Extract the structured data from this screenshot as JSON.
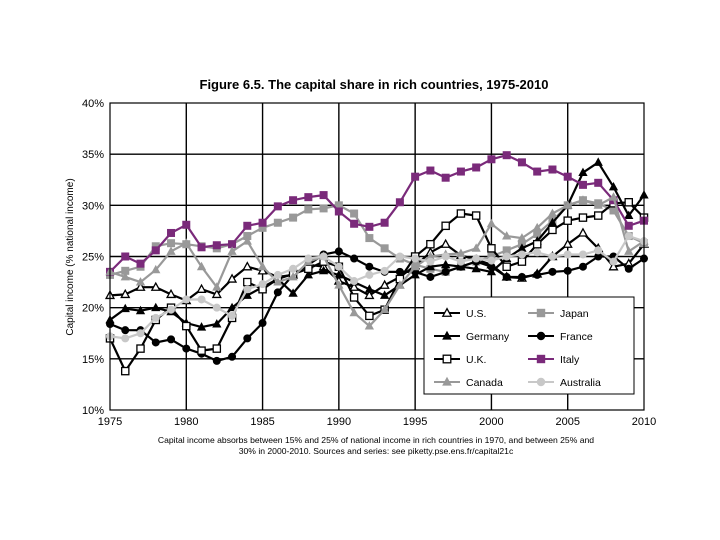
{
  "chart_data": {
    "type": "line",
    "title": "Figure 6.5. The capital share in rich countries, 1975-2010",
    "xlabel": "",
    "ylabel": "Capital income (% national income)",
    "xlim": [
      1975,
      2010
    ],
    "ylim": [
      0.1,
      0.4
    ],
    "x_ticks": [
      "1975",
      "1980",
      "1985",
      "1990",
      "1995",
      "2000",
      "2005",
      "2010"
    ],
    "y_ticks": [
      "10%",
      "15%",
      "20%",
      "25%",
      "30%",
      "35%",
      "40%"
    ],
    "caption_line1": "Capital income absorbs between 15% and 25% of national income in rich countries in 1970, and between 25% and",
    "caption_line2": "30% in 2000-2010. Sources and series: see piketty.pse.ens.fr/capital21c",
    "legend_position": "lower-right",
    "x": [
      1975,
      1976,
      1977,
      1978,
      1979,
      1980,
      1981,
      1982,
      1983,
      1984,
      1985,
      1986,
      1987,
      1988,
      1989,
      1990,
      1991,
      1992,
      1993,
      1994,
      1995,
      1996,
      1997,
      1998,
      1999,
      2000,
      2001,
      2002,
      2003,
      2004,
      2005,
      2006,
      2007,
      2008,
      2009,
      2010
    ],
    "series": [
      {
        "name": "U.S.",
        "color": "#000000",
        "marker": "triangle-open",
        "values": [
          0.212,
          0.213,
          0.22,
          0.22,
          0.213,
          0.207,
          0.218,
          0.213,
          0.228,
          0.24,
          0.236,
          0.23,
          0.232,
          0.242,
          0.24,
          0.226,
          0.22,
          0.212,
          0.222,
          0.23,
          0.241,
          0.254,
          0.262,
          0.251,
          0.247,
          0.242,
          0.23,
          0.229,
          0.233,
          0.25,
          0.262,
          0.273,
          0.258,
          0.24,
          0.243,
          0.262
        ]
      },
      {
        "name": "Japan",
        "color": "#999999",
        "marker": "square",
        "values": [
          0.232,
          0.236,
          0.24,
          0.26,
          0.263,
          0.262,
          0.26,
          0.258,
          0.262,
          0.27,
          0.278,
          0.283,
          0.288,
          0.296,
          0.297,
          0.3,
          0.292,
          0.268,
          0.258,
          0.248,
          0.242,
          0.238,
          0.235,
          0.24,
          0.245,
          0.25,
          0.256,
          0.262,
          0.272,
          0.285,
          0.3,
          0.305,
          0.302,
          0.295,
          0.27,
          0.263
        ]
      },
      {
        "name": "Germany",
        "color": "#000000",
        "marker": "triangle",
        "values": [
          0.188,
          0.199,
          0.197,
          0.2,
          0.196,
          0.185,
          0.181,
          0.184,
          0.2,
          0.212,
          0.22,
          0.228,
          0.214,
          0.232,
          0.236,
          0.232,
          0.225,
          0.218,
          0.212,
          0.222,
          0.232,
          0.24,
          0.242,
          0.24,
          0.238,
          0.235,
          0.248,
          0.258,
          0.265,
          0.283,
          0.3,
          0.332,
          0.342,
          0.318,
          0.29,
          0.31
        ]
      },
      {
        "name": "France",
        "color": "#000000",
        "marker": "circle",
        "values": [
          0.184,
          0.178,
          0.178,
          0.166,
          0.169,
          0.16,
          0.155,
          0.148,
          0.152,
          0.17,
          0.185,
          0.215,
          0.232,
          0.242,
          0.252,
          0.255,
          0.248,
          0.24,
          0.235,
          0.235,
          0.235,
          0.23,
          0.235,
          0.24,
          0.245,
          0.24,
          0.23,
          0.23,
          0.232,
          0.235,
          0.236,
          0.24,
          0.25,
          0.25,
          0.238,
          0.248
        ]
      },
      {
        "name": "U.K.",
        "color": "#000000",
        "marker": "square-open",
        "values": [
          0.17,
          0.138,
          0.16,
          0.188,
          0.2,
          0.182,
          0.158,
          0.16,
          0.19,
          0.225,
          0.218,
          0.228,
          0.233,
          0.238,
          0.245,
          0.24,
          0.21,
          0.192,
          0.198,
          0.228,
          0.25,
          0.262,
          0.28,
          0.292,
          0.29,
          0.258,
          0.24,
          0.245,
          0.262,
          0.276,
          0.285,
          0.288,
          0.29,
          0.302,
          0.303,
          0.288
        ]
      },
      {
        "name": "Italy",
        "color": "#7a2a7a",
        "marker": "square",
        "values": [
          0.235,
          0.25,
          0.243,
          0.256,
          0.273,
          0.281,
          0.259,
          0.261,
          0.262,
          0.28,
          0.283,
          0.299,
          0.305,
          0.308,
          0.31,
          0.294,
          0.282,
          0.279,
          0.283,
          0.303,
          0.328,
          0.334,
          0.327,
          0.333,
          0.337,
          0.345,
          0.349,
          0.342,
          0.333,
          0.335,
          0.328,
          0.32,
          0.322,
          0.305,
          0.28,
          0.285
        ]
      },
      {
        "name": "Canada",
        "color": "#999999",
        "marker": "triangle",
        "values": [
          0.235,
          0.23,
          0.225,
          0.237,
          0.255,
          0.263,
          0.24,
          0.22,
          0.255,
          0.265,
          0.24,
          0.225,
          0.23,
          0.245,
          0.25,
          0.222,
          0.195,
          0.182,
          0.198,
          0.222,
          0.24,
          0.25,
          0.252,
          0.253,
          0.258,
          0.282,
          0.27,
          0.268,
          0.278,
          0.292,
          0.3,
          0.305,
          0.3,
          0.308,
          0.255,
          0.265
        ]
      },
      {
        "name": "Australia",
        "color": "#c8c8c8",
        "marker": "circle",
        "values": [
          0.172,
          0.17,
          0.175,
          0.19,
          0.198,
          0.208,
          0.208,
          0.2,
          0.192,
          0.218,
          0.223,
          0.232,
          0.238,
          0.248,
          0.25,
          0.24,
          0.226,
          0.232,
          0.236,
          0.25,
          0.248,
          0.245,
          0.25,
          0.245,
          0.248,
          0.246,
          0.25,
          0.252,
          0.254,
          0.25,
          0.252,
          0.252,
          0.256,
          0.245,
          0.27,
          0.265
        ]
      }
    ]
  }
}
